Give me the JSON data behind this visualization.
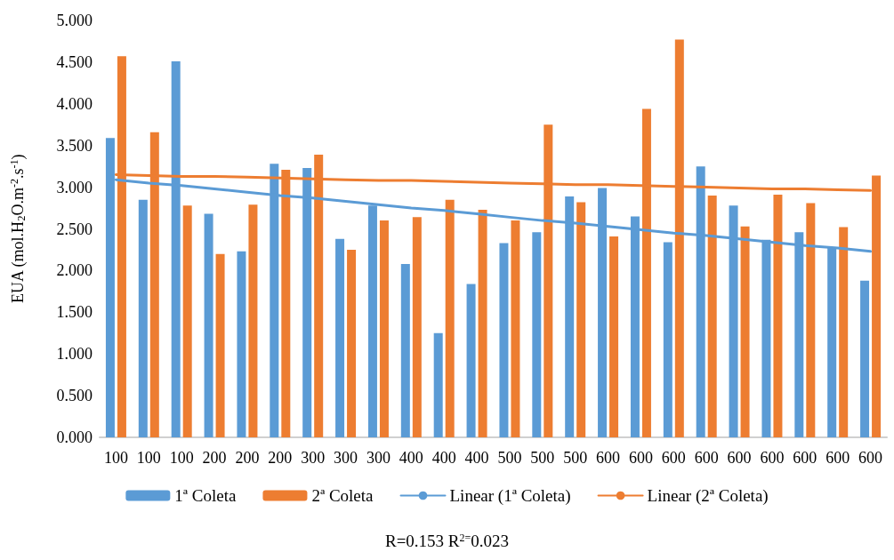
{
  "chart_data": {
    "type": "bar",
    "ylabel": "EUA (mol.H$_{2}$O.m$^{-2}$.s$^{-1}$)",
    "annotations": [
      "R=0.153 R$^{2=}$0.023"
    ],
    "categories": [
      "100",
      "100",
      "100",
      "200",
      "200",
      "200",
      "300",
      "300",
      "300",
      "400",
      "400",
      "400",
      "500",
      "500",
      "500",
      "600",
      "600",
      "600",
      "600",
      "600",
      "600",
      "600",
      "600",
      "600"
    ],
    "series": [
      {
        "name": "1ª Coleta",
        "color": "#5b9bd5",
        "values": [
          3.59,
          2.85,
          4.51,
          2.68,
          2.23,
          3.28,
          3.23,
          2.38,
          2.78,
          2.08,
          1.25,
          1.84,
          2.33,
          2.46,
          2.89,
          2.99,
          2.65,
          2.34,
          3.25,
          2.78,
          2.37,
          2.46,
          2.28,
          1.88
        ]
      },
      {
        "name": "2ª Coleta",
        "color": "#ed7d31",
        "values": [
          4.57,
          3.66,
          2.78,
          2.2,
          2.79,
          3.21,
          3.39,
          2.25,
          2.6,
          2.64,
          2.85,
          2.73,
          2.6,
          3.75,
          2.82,
          2.41,
          3.94,
          4.77,
          2.9,
          2.53,
          2.91,
          2.81,
          2.52,
          3.14
        ]
      },
      {
        "name": "Linear (1ª Coleta)",
        "type": "line",
        "color": "#5b9bd5",
        "values": [
          3.09,
          3.05,
          3.02,
          2.98,
          2.94,
          2.9,
          2.87,
          2.83,
          2.79,
          2.75,
          2.72,
          2.68,
          2.64,
          2.6,
          2.57,
          2.53,
          2.49,
          2.45,
          2.42,
          2.38,
          2.34,
          2.3,
          2.27,
          2.23
        ]
      },
      {
        "name": "Linear (2ª Coleta)",
        "type": "line",
        "color": "#ed7d31",
        "values": [
          3.15,
          3.14,
          3.13,
          3.13,
          3.12,
          3.11,
          3.1,
          3.09,
          3.08,
          3.08,
          3.07,
          3.06,
          3.05,
          3.04,
          3.03,
          3.03,
          3.02,
          3.01,
          3.0,
          2.99,
          2.98,
          2.98,
          2.97,
          2.96
        ]
      }
    ],
    "ylim": [
      0,
      5
    ],
    "yticks": [
      {
        "value": 0,
        "label": "0.000"
      },
      {
        "value": 0.5,
        "label": "0.500"
      },
      {
        "value": 1,
        "label": "1.000"
      },
      {
        "value": 1.5,
        "label": "1.500"
      },
      {
        "value": 2,
        "label": "2.000"
      },
      {
        "value": 2.5,
        "label": "2.500"
      },
      {
        "value": 3,
        "label": "3.000"
      },
      {
        "value": 3.5,
        "label": "3.500"
      },
      {
        "value": 4,
        "label": "4.000"
      },
      {
        "value": 4.5,
        "label": "4.500"
      },
      {
        "value": 5,
        "label": "5.000"
      }
    ],
    "legend": "bottom",
    "marker": "none",
    "line_style": "solid"
  }
}
